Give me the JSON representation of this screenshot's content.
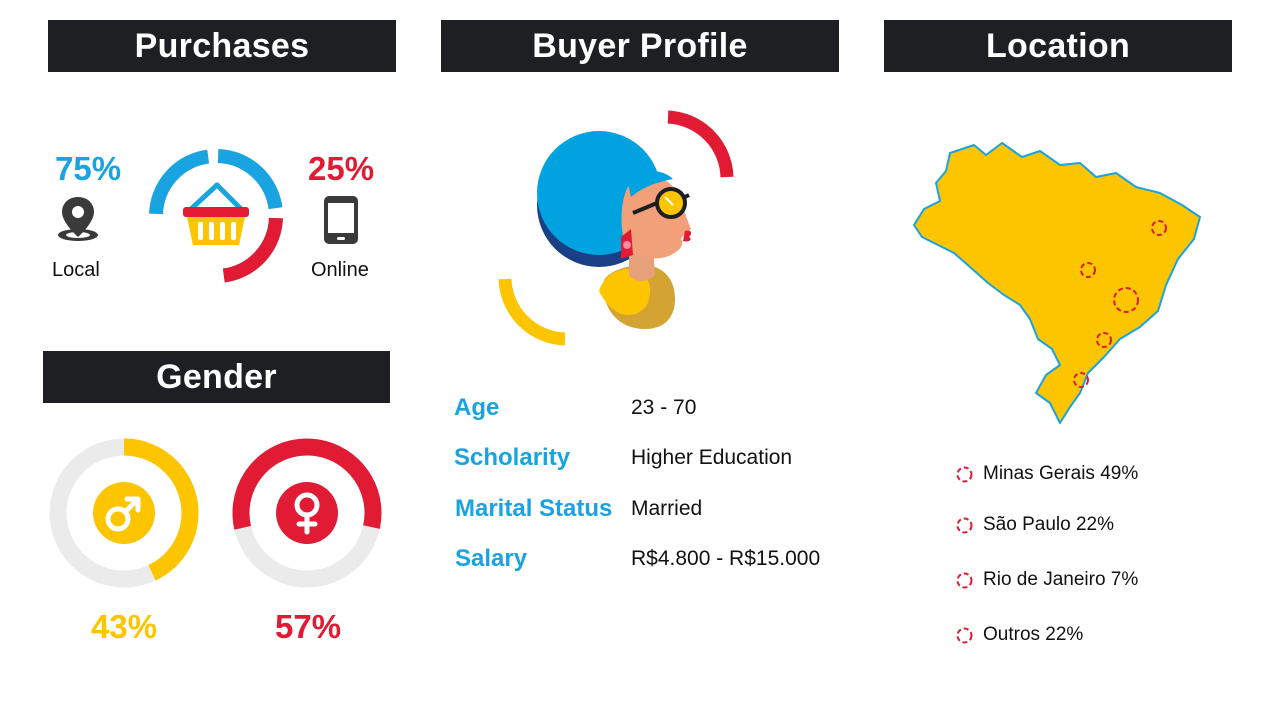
{
  "colors": {
    "header_bg": "#1e1f22",
    "blue": "#1aa3e1",
    "red": "#e01b33",
    "yellow": "#fcc500",
    "grey_ring": "#ebebeb",
    "dark_icon": "#3a3a3a"
  },
  "purchases": {
    "title": "Purchases",
    "local": {
      "percent": "75%",
      "label": "Local",
      "icon": "location-pin-icon",
      "share": 0.75
    },
    "online": {
      "percent": "25%",
      "label": "Online",
      "icon": "smartphone-icon",
      "share": 0.25
    },
    "center_icon": "shopping-basket-icon"
  },
  "gender": {
    "title": "Gender",
    "male": {
      "percent": "43%",
      "icon": "male-symbol-icon",
      "share": 0.43
    },
    "female": {
      "percent": "57%",
      "icon": "female-symbol-icon",
      "share": 0.57
    }
  },
  "buyer_profile": {
    "title": "Buyer Profile",
    "illustration": "woman-profile-illustration",
    "fields": [
      {
        "key": "Age",
        "value": "23 - 70"
      },
      {
        "key": "Scholarity",
        "value": "Higher Education"
      },
      {
        "key": "Marital Status",
        "value": "Married"
      },
      {
        "key": "Salary",
        "value": "R$4.800 - R$15.000"
      }
    ]
  },
  "location": {
    "title": "Location",
    "map": "brazil-map-icon",
    "regions": [
      {
        "label": "Minas Gerais 49%"
      },
      {
        "label": "São Paulo 22%"
      },
      {
        "label": "Rio de Janeiro 7%"
      },
      {
        "label": "Outros 22%"
      }
    ]
  }
}
